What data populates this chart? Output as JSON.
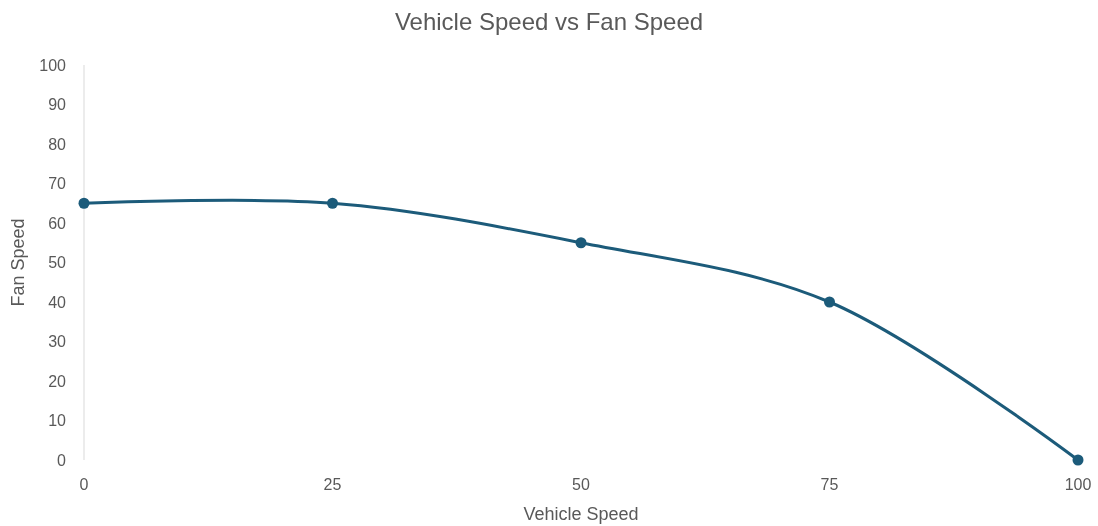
{
  "chart_data": {
    "type": "line",
    "title": "Vehicle Speed vs Fan Speed",
    "xlabel": "Vehicle Speed",
    "ylabel": "Fan Speed",
    "x": [
      0,
      25,
      50,
      75,
      100
    ],
    "series": [
      {
        "color": "#1c5b7a",
        "values": [
          65,
          65,
          55,
          40,
          0
        ]
      }
    ],
    "xlim": [
      0,
      100
    ],
    "xticks": [
      0,
      25,
      50,
      75,
      100
    ],
    "ylim": [
      0,
      100
    ],
    "yticks": [
      0,
      10,
      20,
      30,
      40,
      50,
      60,
      70,
      80,
      90,
      100
    ],
    "grid": false,
    "marker": "circle",
    "line_style": "solid"
  }
}
